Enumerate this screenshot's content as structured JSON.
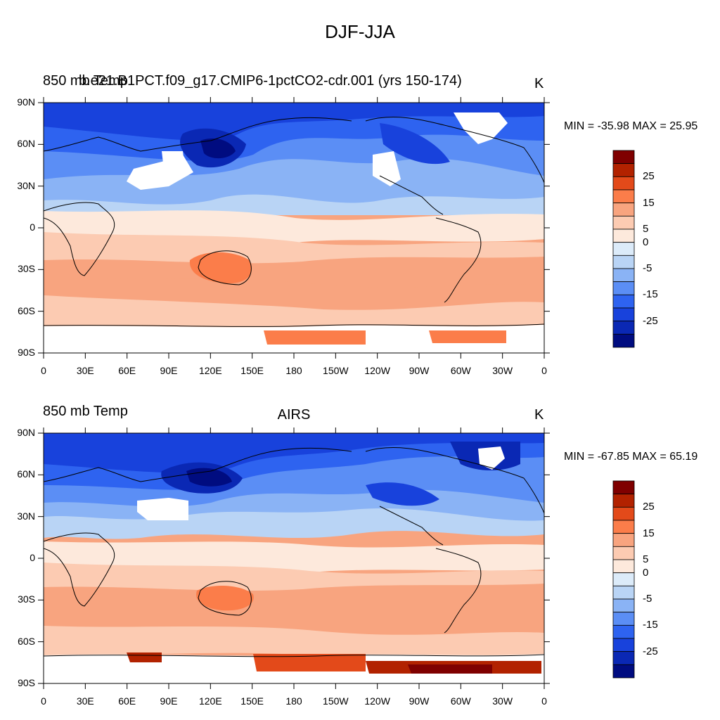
{
  "title": "DJF-JJA",
  "panels": [
    {
      "left_label": "850 mb Temp",
      "overlay_label": "b.e21.B1PCT.f09_g17.CMIP6-1pctCO2-cdr.001 (yrs 150-174)",
      "center_label": "",
      "units": "K",
      "minmax": "MIN = -35.98 MAX =  25.95"
    },
    {
      "left_label": "850 mb Temp",
      "overlay_label": "",
      "center_label": "AIRS",
      "units": "K",
      "minmax": "MIN = -67.85 MAX =  65.19"
    }
  ],
  "lat_ticks": [
    "90N",
    "60N",
    "30N",
    "0",
    "30S",
    "60S",
    "90S"
  ],
  "lon_ticks": [
    "0",
    "30E",
    "60E",
    "90E",
    "120E",
    "150E",
    "180",
    "150W",
    "120W",
    "90W",
    "60W",
    "30W",
    "0"
  ],
  "colorbar": {
    "labels": [
      "25",
      "15",
      "5",
      "0",
      "-5",
      "-15",
      "-25"
    ],
    "colors": [
      "#7f0000",
      "#b22200",
      "#e34a1a",
      "#fb7d4a",
      "#f8a47f",
      "#fccbb2",
      "#fde9dc",
      "#dcebf9",
      "#b9d4f5",
      "#8ab3f5",
      "#5b8ef5",
      "#2e63f0",
      "#1842dc",
      "#0a28b4",
      "#000c80"
    ]
  }
}
